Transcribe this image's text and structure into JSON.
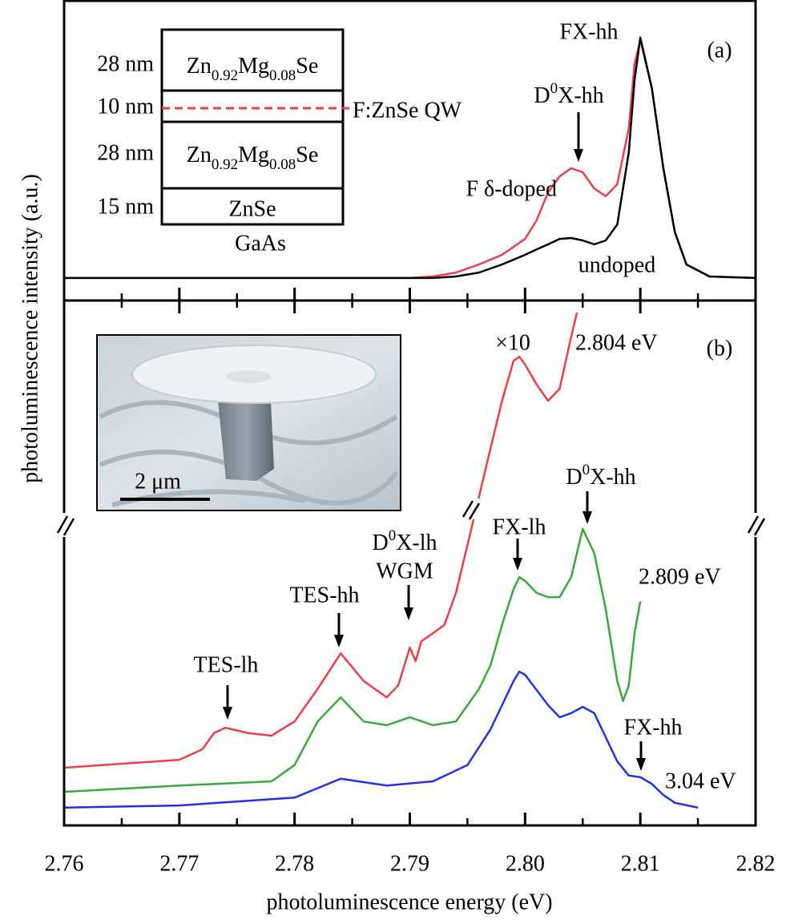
{
  "chart_data": [
    {
      "type": "line",
      "xlim": [
        2.76,
        2.82
      ],
      "ylim": [
        0,
        100
      ],
      "ylabel": "photoluminescence intensity (a.u.)",
      "series": [
        {
          "name": "F δ-doped",
          "color": "#e8404a",
          "x": [
            2.76,
            2.77,
            2.78,
            2.785,
            2.79,
            2.792,
            2.794,
            2.796,
            2.798,
            2.8,
            2.801,
            2.802,
            2.803,
            2.804,
            2.805,
            2.806,
            2.807,
            2.808,
            2.809,
            2.8095,
            2.81,
            2.811,
            2.812,
            2.813,
            2.814,
            2.816,
            2.82
          ],
          "values": [
            7.5,
            7.5,
            7.5,
            7.5,
            7.5,
            8,
            9.3,
            12,
            15.2,
            20.5,
            26.7,
            36,
            41.3,
            44,
            42.7,
            37.3,
            34.7,
            38.7,
            57.3,
            78.7,
            86.7,
            70.7,
            44,
            22.7,
            12,
            8,
            7.5
          ]
        },
        {
          "name": "undoped",
          "color": "#000000",
          "x": [
            2.76,
            2.77,
            2.78,
            2.785,
            2.79,
            2.792,
            2.794,
            2.796,
            2.798,
            2.8,
            2.801,
            2.802,
            2.803,
            2.804,
            2.805,
            2.806,
            2.807,
            2.808,
            2.809,
            2.8095,
            2.81,
            2.811,
            2.812,
            2.813,
            2.814,
            2.816,
            2.82
          ],
          "values": [
            7.5,
            7.5,
            7.5,
            7.5,
            7.5,
            7.5,
            8,
            9.3,
            12,
            15.2,
            17,
            18.7,
            20.5,
            20.8,
            20,
            18.7,
            20,
            25.3,
            49.3,
            73.3,
            87.5,
            70.7,
            44,
            22.7,
            12,
            8,
            7.5
          ]
        }
      ],
      "annotations": [
        "(a)",
        "FX-hh",
        [
          "D",
          "0",
          "X-hh"
        ]
      ],
      "inset": {
        "layers": [
          {
            "thickness": "28 nm",
            "material": [
              "Zn",
              "0.92",
              "Mg",
              "0.08",
              "Se"
            ]
          },
          {
            "thickness": "10 nm",
            "material": "F:ZnSe QW"
          },
          {
            "thickness": "28 nm",
            "material": [
              "Zn",
              "0.92",
              "Mg",
              "0.08",
              "Se"
            ]
          },
          {
            "thickness": "15 nm",
            "material": "ZnSe"
          }
        ],
        "substrate": "GaAs"
      }
    },
    {
      "type": "line",
      "xlim": [
        2.76,
        2.82
      ],
      "ylim": [
        0,
        100
      ],
      "xticks": [
        2.76,
        2.77,
        2.78,
        2.79,
        {
          "value": 2.8,
          "label": "2.80"
        },
        2.81,
        2.82
      ],
      "xminorticks": [
        2.765,
        2.775,
        2.785,
        2.795,
        2.805,
        2.815
      ],
      "xlabel": "photoluminescence  energy (eV)",
      "series": [
        {
          "name": "2.804 eV",
          "color": "#e8404a",
          "x": [
            2.76,
            2.77,
            2.772,
            2.773,
            2.774,
            2.776,
            2.778,
            2.78,
            2.782,
            2.784,
            2.786,
            2.788,
            2.789,
            2.79,
            2.7905,
            2.791,
            2.792,
            2.793,
            2.794,
            2.795,
            2.796,
            2.797,
            2.798,
            2.799,
            2.7995,
            2.8,
            2.801,
            2.802,
            2.803,
            2.804,
            2.8045
          ],
          "values": [
            11,
            12.5,
            14.5,
            17.6,
            18.6,
            17.6,
            17.1,
            19.8,
            26,
            32.8,
            27.5,
            24.4,
            26.7,
            33.9,
            31.3,
            35.1,
            36.6,
            38.2,
            44.3,
            53.4,
            62.6,
            71.8,
            80.9,
            88.5,
            89.3,
            87.8,
            84,
            80.9,
            83.2,
            93.1,
            97.7
          ]
        },
        {
          "name": "2.809 eV",
          "color": "#3aa83a",
          "x": [
            2.76,
            2.77,
            2.778,
            2.78,
            2.782,
            2.784,
            2.786,
            2.788,
            2.79,
            2.792,
            2.794,
            2.796,
            2.797,
            2.798,
            2.799,
            2.7995,
            2.8,
            2.801,
            2.802,
            2.803,
            2.804,
            2.805,
            2.806,
            2.807,
            2.808,
            2.8085,
            2.809,
            2.8095,
            2.81
          ],
          "values": [
            6.4,
            7.6,
            8.4,
            11.5,
            19.8,
            24.4,
            19.8,
            19.1,
            20.6,
            19.1,
            19.8,
            26,
            30.5,
            38.2,
            45,
            47.3,
            46.6,
            44.3,
            43.5,
            43.5,
            47.3,
            56.5,
            51.9,
            41.2,
            27.5,
            23.7,
            26.7,
            36.6,
            42.7
          ]
        },
        {
          "name": "3.04 eV",
          "color": "#2233dd",
          "x": [
            2.76,
            2.77,
            2.78,
            2.784,
            2.788,
            2.792,
            2.795,
            2.797,
            2.799,
            2.7995,
            2.8,
            2.802,
            2.803,
            2.804,
            2.805,
            2.806,
            2.807,
            2.808,
            2.809,
            2.81,
            2.811,
            2.812,
            2.813,
            2.815
          ],
          "values": [
            3.4,
            3.8,
            5.3,
            8.9,
            7.6,
            8.4,
            11.5,
            18.3,
            27.5,
            29.3,
            28.7,
            22.9,
            20.6,
            21.4,
            22.6,
            21.4,
            16.8,
            12.2,
            9.5,
            9.2,
            7.9,
            5.8,
            4.3,
            3.4
          ]
        }
      ],
      "annotations": [
        "(b)",
        "×10",
        "TES-lh",
        "TES-hh",
        [
          "D",
          "0",
          "X-lh"
        ],
        "WGM",
        "FX-lh",
        [
          "D",
          "0",
          "X-hh"
        ],
        "FX-hh"
      ],
      "inset": {
        "scale_bar": "2 μm"
      }
    }
  ]
}
